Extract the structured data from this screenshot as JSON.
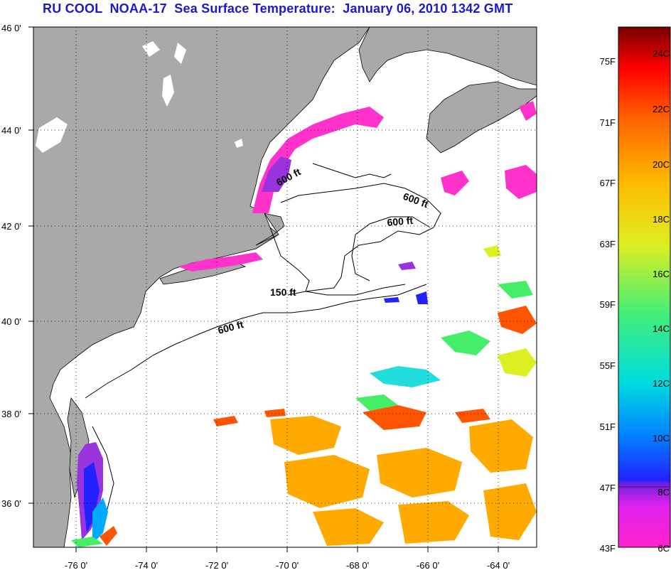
{
  "title": "RU COOL  NOAA-17  Sea Surface Temperature:  January 06, 2010 1342 GMT",
  "map": {
    "lat_ticks": [
      "46 0'",
      "44 0'",
      "42 0'",
      "40 0'",
      "38 0'",
      "36 0'"
    ],
    "lon_ticks": [
      "-76 0'",
      "-74 0'",
      "-72 0'",
      "-70 0'",
      "-68 0'",
      "-66 0'",
      "-64 0'"
    ],
    "contour_labels": [
      "600 ft",
      "600 ft",
      "600 ft",
      "150 ft",
      "600 ft"
    ],
    "colors": {
      "land": "#a9a9a9",
      "ocean": "#ffffff",
      "coast": "#000000"
    }
  },
  "colorbar": {
    "fahrenheit_labels": [
      "75F",
      "71F",
      "67F",
      "63F",
      "59F",
      "55F",
      "51F",
      "47F",
      "43F"
    ],
    "celsius_labels": [
      "24C",
      "22C",
      "20C",
      "18C",
      "16C",
      "14C",
      "12C",
      "10C",
      "8C",
      "6C"
    ],
    "colors": [
      "#ff22cc",
      "#9933dd",
      "#2222ff",
      "#00aaff",
      "#22dddd",
      "#44ee66",
      "#ddee22",
      "#ffaa00",
      "#ff5500",
      "#ee0000",
      "#770000"
    ]
  }
}
